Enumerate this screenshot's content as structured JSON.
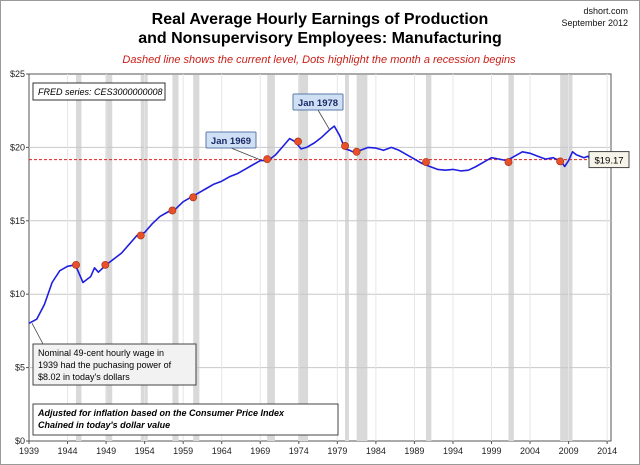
{
  "chart_data": {
    "type": "line",
    "title": "Real Average Hourly Earnings of Production\nand Nonsupervisory Employees: Manufacturing",
    "subtitle": "Dashed line shows the current level, Dots highlight the month a recession begins",
    "source_site": "dshort.com",
    "source_date": "September 2012",
    "series_box": "FRED series: CES3000000008",
    "xlim": [
      1939,
      2014.5
    ],
    "ylim": [
      0,
      25
    ],
    "x_ticks": [
      1939,
      1944,
      1949,
      1954,
      1959,
      1964,
      1969,
      1974,
      1979,
      1984,
      1989,
      1994,
      1999,
      2004,
      2009,
      2014
    ],
    "y_ticks": [
      0,
      5,
      10,
      15,
      20,
      25
    ],
    "y_tick_labels": [
      "$0",
      "$5",
      "$10",
      "$15",
      "$20",
      "$25"
    ],
    "current_level": 19.17,
    "current_level_label": "$19.17",
    "recessions": [
      [
        1945.1,
        1945.8
      ],
      [
        1948.9,
        1949.8
      ],
      [
        1953.5,
        1954.4
      ],
      [
        1957.6,
        1958.4
      ],
      [
        1960.3,
        1961.1
      ],
      [
        1969.9,
        1970.9
      ],
      [
        1973.9,
        1975.2
      ],
      [
        1980.0,
        1980.5
      ],
      [
        1981.5,
        1982.9
      ],
      [
        1990.5,
        1991.2
      ],
      [
        2001.2,
        2001.9
      ],
      [
        2007.9,
        2009.5
      ]
    ],
    "recession_dots": [
      {
        "x": 1945.1,
        "y": 12.0
      },
      {
        "x": 1948.9,
        "y": 12.0
      },
      {
        "x": 1953.5,
        "y": 14.0
      },
      {
        "x": 1957.6,
        "y": 15.7
      },
      {
        "x": 1960.3,
        "y": 16.6
      },
      {
        "x": 1969.9,
        "y": 19.2
      },
      {
        "x": 1973.9,
        "y": 20.4
      },
      {
        "x": 1980.0,
        "y": 20.1
      },
      {
        "x": 1981.5,
        "y": 19.7
      },
      {
        "x": 1990.5,
        "y": 19.0
      },
      {
        "x": 2001.2,
        "y": 19.0
      },
      {
        "x": 2007.9,
        "y": 19.05
      }
    ],
    "series": [
      {
        "color": "#1f1fe0",
        "x": [
          1939.0,
          1940.0,
          1941.0,
          1942.0,
          1943.0,
          1944.0,
          1945.0,
          1945.5,
          1946.0,
          1946.5,
          1947.0,
          1947.5,
          1948.0,
          1949.0,
          1950.0,
          1951.0,
          1952.0,
          1953.0,
          1954.0,
          1955.0,
          1956.0,
          1957.0,
          1958.0,
          1959.0,
          1960.0,
          1961.0,
          1962.0,
          1963.0,
          1964.0,
          1965.0,
          1966.0,
          1967.0,
          1968.0,
          1969.0,
          1970.0,
          1971.0,
          1972.0,
          1972.8,
          1973.5,
          1974.3,
          1975.0,
          1976.0,
          1977.0,
          1978.0,
          1978.6,
          1979.3,
          1980.0,
          1980.6,
          1981.0,
          1982.0,
          1983.0,
          1984.0,
          1985.0,
          1986.0,
          1987.0,
          1988.0,
          1989.0,
          1990.0,
          1991.0,
          1992.0,
          1993.0,
          1994.0,
          1995.0,
          1996.0,
          1997.0,
          1998.0,
          1999.0,
          2000.0,
          2001.0,
          2002.0,
          2003.0,
          2004.0,
          2005.0,
          2006.0,
          2007.0,
          2008.0,
          2008.5,
          2009.0,
          2009.5,
          2010.0,
          2011.0,
          2011.5,
          2012.0,
          2012.6
        ],
        "y": [
          8.02,
          8.3,
          9.3,
          10.8,
          11.6,
          11.9,
          12.0,
          11.4,
          10.8,
          11.0,
          11.2,
          11.8,
          11.5,
          12.0,
          12.4,
          12.8,
          13.4,
          14.0,
          14.2,
          14.8,
          15.3,
          15.6,
          15.8,
          16.3,
          16.6,
          16.9,
          17.2,
          17.5,
          17.7,
          18.0,
          18.2,
          18.5,
          18.8,
          19.1,
          19.1,
          19.5,
          20.1,
          20.6,
          20.4,
          19.9,
          20.0,
          20.3,
          20.7,
          21.2,
          21.45,
          20.8,
          19.9,
          19.8,
          19.7,
          19.8,
          20.0,
          19.95,
          19.8,
          20.0,
          19.8,
          19.5,
          19.2,
          18.9,
          18.7,
          18.5,
          18.45,
          18.5,
          18.4,
          18.45,
          18.7,
          19.0,
          19.3,
          19.2,
          19.1,
          19.4,
          19.7,
          19.6,
          19.4,
          19.2,
          19.3,
          19.05,
          18.7,
          19.1,
          19.7,
          19.5,
          19.3,
          19.4,
          19.0,
          19.17
        ]
      }
    ],
    "annotations": [
      {
        "label": "Jan 1969",
        "x": 1969.0,
        "y": 19.15
      },
      {
        "label": "Jan 1978",
        "x": 1978.0,
        "y": 21.2
      }
    ],
    "note_1939": "Nominal 49-cent hourly wage in 1939  had the puchasing power of $8.02  in today's dollars",
    "note_bottom": "Adjusted for inflation based on the Consumer Price Index\nChained in today's dollar value",
    "grid": true
  }
}
